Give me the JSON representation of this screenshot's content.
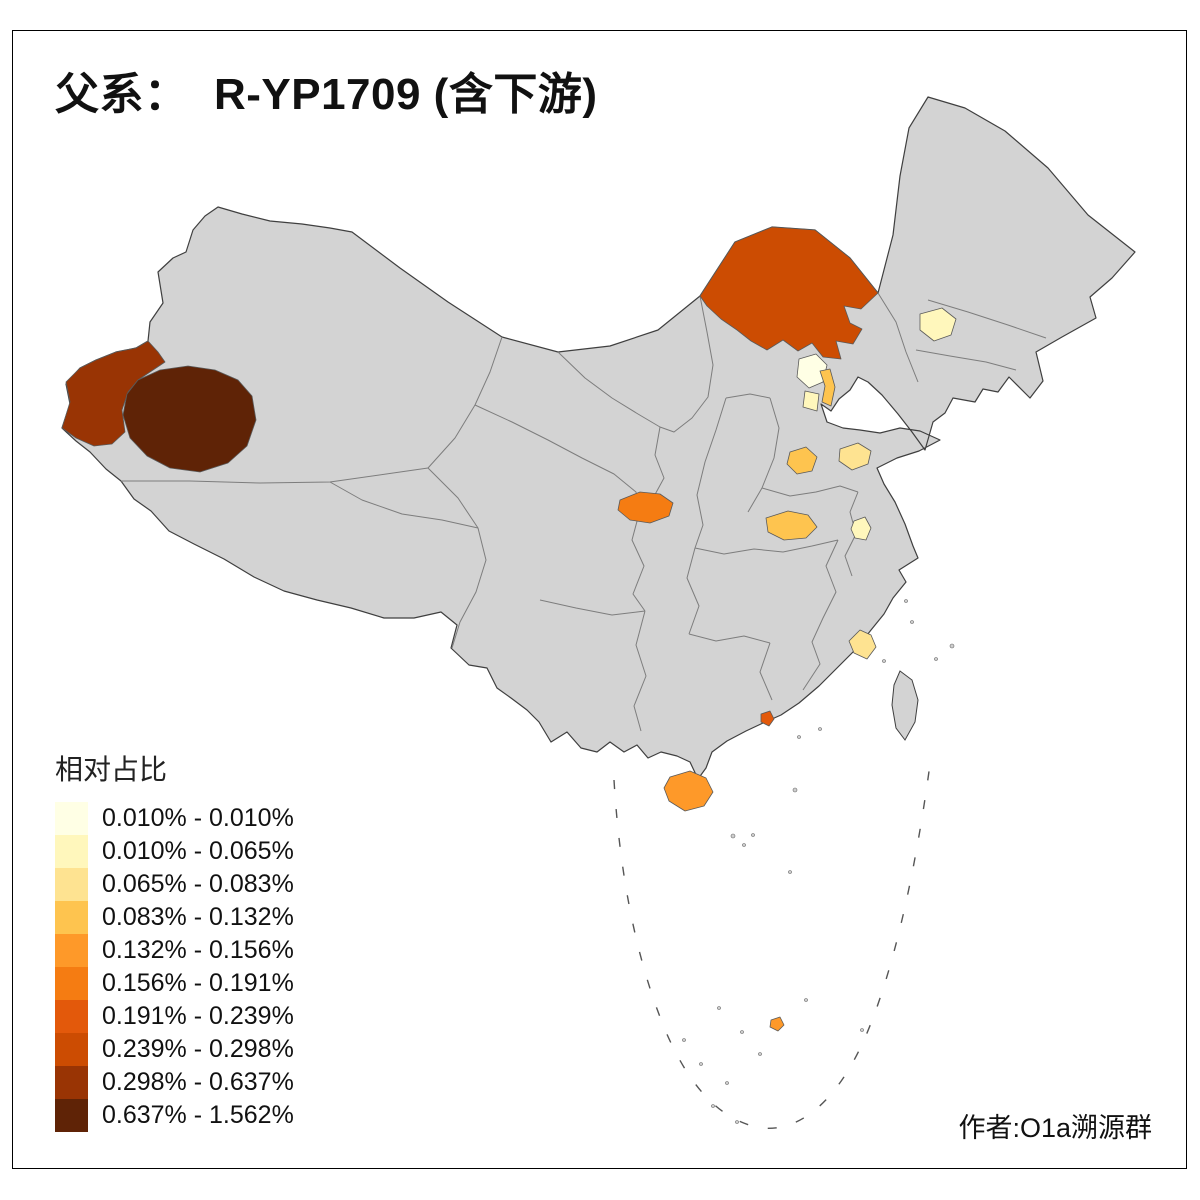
{
  "title": "父系：  R-YP1709 (含下游)",
  "attribution": "作者:O1a溯源群",
  "legend": {
    "title": "相对占比",
    "items": [
      {
        "label": "0.010% - 0.010%",
        "color": "#FFFFE5"
      },
      {
        "label": "0.010% - 0.065%",
        "color": "#FFF7BC"
      },
      {
        "label": "0.065% - 0.083%",
        "color": "#FEE391"
      },
      {
        "label": "0.083% - 0.132%",
        "color": "#FEC44F"
      },
      {
        "label": "0.132% - 0.156%",
        "color": "#FE9929"
      },
      {
        "label": "0.156% - 0.191%",
        "color": "#F57C12"
      },
      {
        "label": "0.191% - 0.239%",
        "color": "#E3590B"
      },
      {
        "label": "0.239% - 0.298%",
        "color": "#CC4C02"
      },
      {
        "label": "0.298% - 0.637%",
        "color": "#993404"
      },
      {
        "label": "0.637% - 1.562%",
        "color": "#5F2306"
      }
    ]
  },
  "map": {
    "base_fill": "#D3D3D3",
    "outline_color": "#3F3F3F",
    "province_border_color": "#7D7D7D",
    "regions": [
      {
        "id": "southern-xinjiang",
        "legend_class": "0.637% - 1.562%",
        "color": "#5F2306"
      },
      {
        "id": "western-xinjiang",
        "legend_class": "0.298% - 0.637%",
        "color": "#993404"
      },
      {
        "id": "inner-mongolia",
        "legend_class": "0.239% - 0.298%",
        "color": "#CC4C02"
      },
      {
        "id": "guangdong-spot",
        "legend_class": "0.191% - 0.239%",
        "color": "#E3590B"
      },
      {
        "id": "shaanxi-central",
        "legend_class": "0.156% - 0.191%",
        "color": "#F57C12"
      },
      {
        "id": "hainan",
        "legend_class": "0.132% - 0.156%",
        "color": "#FE9929"
      },
      {
        "id": "south-sea-island",
        "legend_class": "0.132% - 0.156%",
        "color": "#FE9929"
      },
      {
        "id": "tianjin",
        "legend_class": "0.083% - 0.132%",
        "color": "#FEC44F"
      },
      {
        "id": "hubei-north",
        "legend_class": "0.083% - 0.132%",
        "color": "#FEC44F"
      },
      {
        "id": "shanxi-south",
        "legend_class": "0.083% - 0.132%",
        "color": "#FEC44F"
      },
      {
        "id": "shandong-west",
        "legend_class": "0.065% - 0.083%",
        "color": "#FEE391"
      },
      {
        "id": "fujian-coast",
        "legend_class": "0.065% - 0.083%",
        "color": "#FEE391"
      },
      {
        "id": "liaoning-central",
        "legend_class": "0.010% - 0.065%",
        "color": "#FFF7BC"
      },
      {
        "id": "anhui-spot",
        "legend_class": "0.010% - 0.065%",
        "color": "#FFF7BC"
      },
      {
        "id": "hebei-patch",
        "legend_class": "0.010% - 0.065%",
        "color": "#FFF7BC"
      },
      {
        "id": "beijing",
        "legend_class": "0.010% - 0.010%",
        "color": "#FFFFE5"
      }
    ]
  }
}
